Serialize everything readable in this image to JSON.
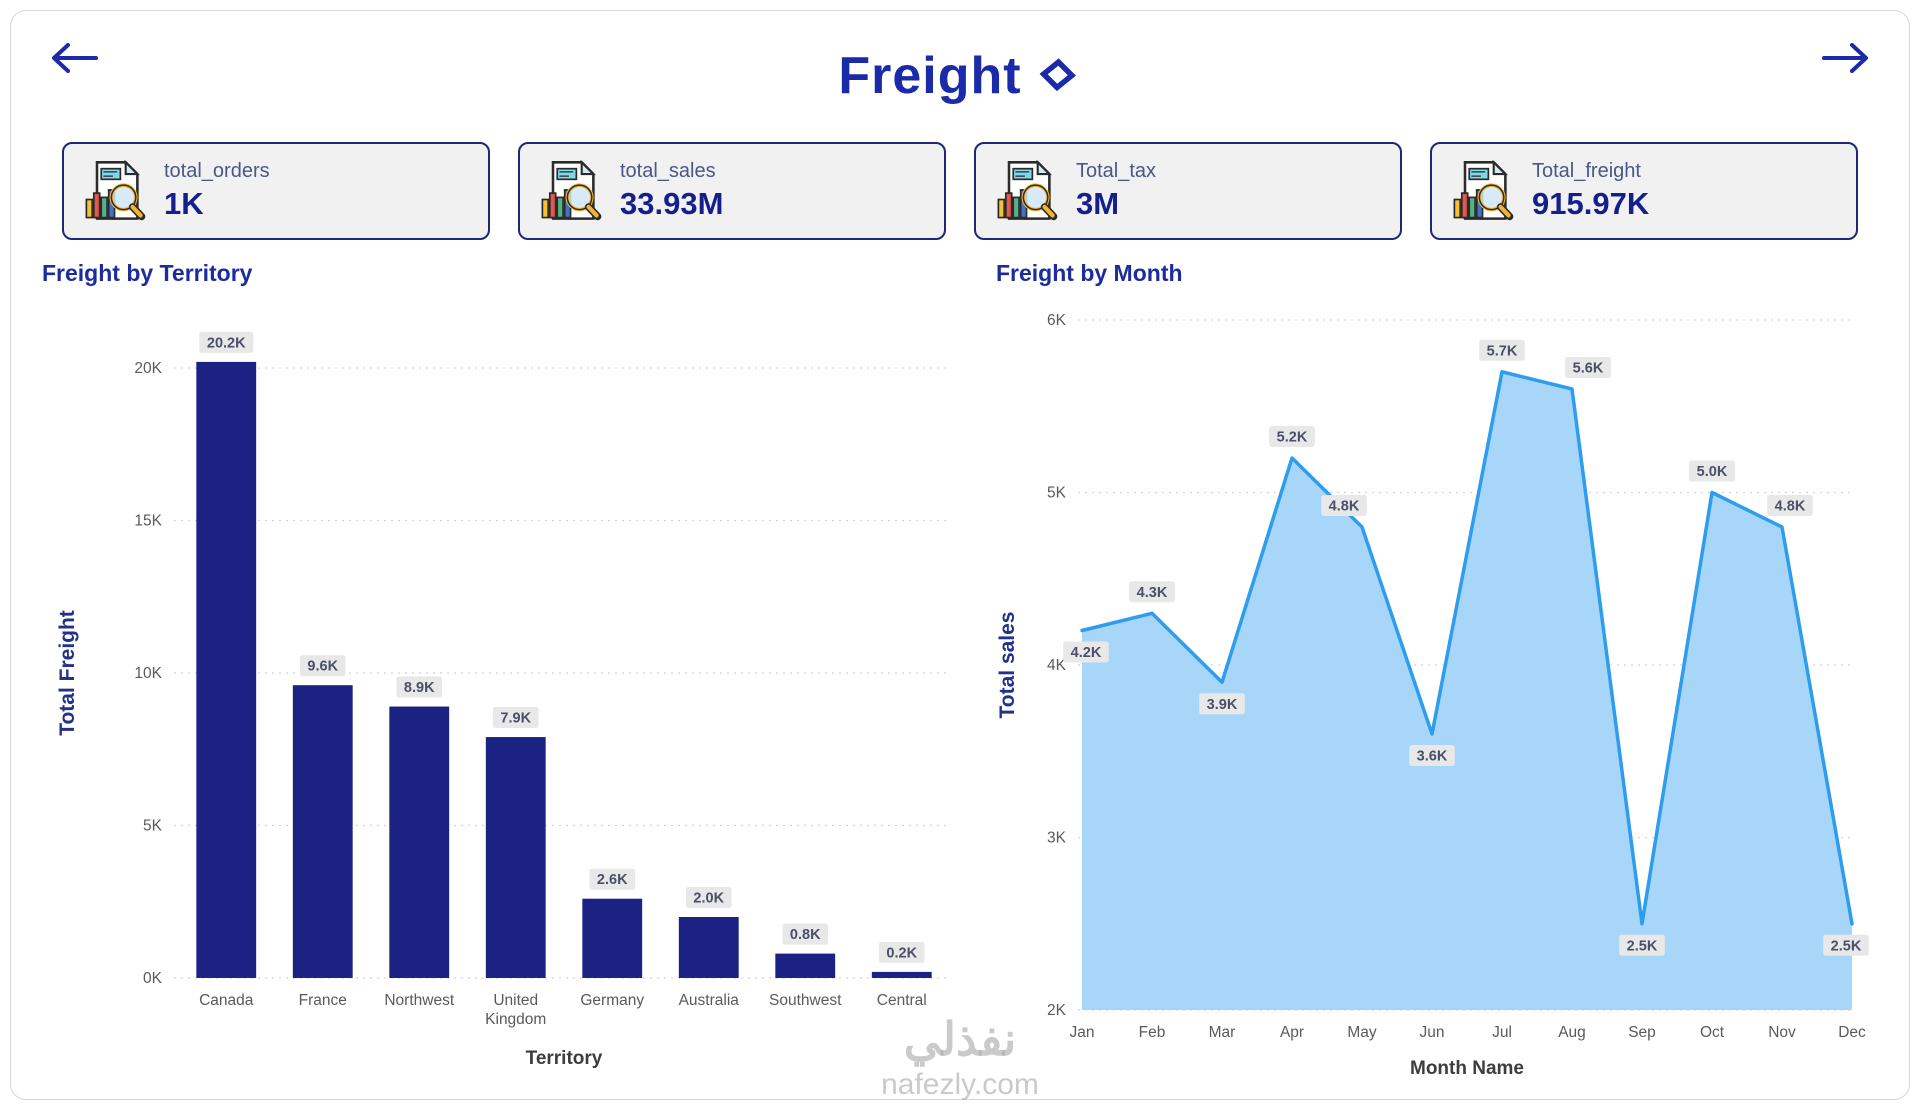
{
  "page": {
    "title": "Freight",
    "watermark_line1": "نفذلي",
    "watermark_line2": "nafezly.com"
  },
  "icons": {
    "back": "arrow-left-icon",
    "forward": "arrow-right-icon",
    "title_decoration": "diamond-outline-icon",
    "kpi": "report-magnifier-chart-icon"
  },
  "kpi_cards": [
    {
      "label": "total_orders",
      "value": "1K"
    },
    {
      "label": "total_sales",
      "value": "33.93M"
    },
    {
      "label": "Total_tax",
      "value": "3M"
    },
    {
      "label": "Total_freight",
      "value": "915.97K"
    }
  ],
  "chart_data": [
    {
      "type": "bar",
      "title": "Freight by Territory",
      "xlabel": "Territory",
      "ylabel": "Total Freight",
      "categories": [
        "Canada",
        "France",
        "Northwest",
        "United Kingdom",
        "Germany",
        "Australia",
        "Southwest",
        "Central"
      ],
      "values": [
        20.2,
        9.6,
        8.9,
        7.9,
        2.6,
        2.0,
        0.8,
        0.2
      ],
      "labels": [
        "20.2K",
        "9.6K",
        "8.9K",
        "7.9K",
        "2.6K",
        "2.0K",
        "0.8K",
        "0.2K"
      ],
      "ylim": [
        0,
        20
      ],
      "yticks": [
        0,
        5,
        10,
        15,
        20
      ],
      "ytick_labels": [
        "0K",
        "5K",
        "10K",
        "15K",
        "20K"
      ],
      "grid": "dashed-horizontal",
      "legend": "none"
    },
    {
      "type": "area",
      "title": "Freight by Month",
      "xlabel": "Month Name",
      "ylabel": "Total sales",
      "categories": [
        "Jan",
        "Feb",
        "Mar",
        "Apr",
        "May",
        "Jun",
        "Jul",
        "Aug",
        "Sep",
        "Oct",
        "Nov",
        "Dec"
      ],
      "values": [
        4.2,
        4.3,
        3.9,
        5.2,
        4.8,
        3.6,
        5.7,
        5.6,
        2.5,
        5.0,
        4.8,
        2.5
      ],
      "labels": [
        "4.2K",
        "4.3K",
        "3.9K",
        "5.2K",
        "4.8K",
        "3.6K",
        "5.7K",
        "5.6K",
        "2.5K",
        "5.0K",
        "4.8K",
        "2.5K"
      ],
      "label_side": [
        "below",
        "above",
        "below",
        "above",
        "above",
        "below",
        "above",
        "above",
        "below",
        "above",
        "above",
        "below"
      ],
      "label_dx": [
        4,
        0,
        0,
        0,
        -18,
        0,
        0,
        16,
        0,
        0,
        8,
        -6
      ],
      "ylim": [
        2,
        6
      ],
      "yticks": [
        2,
        3,
        4,
        5,
        6
      ],
      "ytick_labels": [
        "2K",
        "3K",
        "4K",
        "5K",
        "6K"
      ],
      "grid": "dashed-horizontal",
      "legend": "none"
    }
  ],
  "colors": {
    "title": "#1b2aa8",
    "bar": "#1b2283",
    "area_fill": "#a8d6f9",
    "area_line": "#2f9ded",
    "label_bg": "#e8e8e8",
    "label_text": "#4a5068",
    "tick": "#5a5a5a",
    "x_title": "#3d3d3d",
    "y_title": "#243188",
    "grid": "#d4d4d4",
    "card_border": "#1d2878",
    "card_bg": "#f1f1f1"
  }
}
